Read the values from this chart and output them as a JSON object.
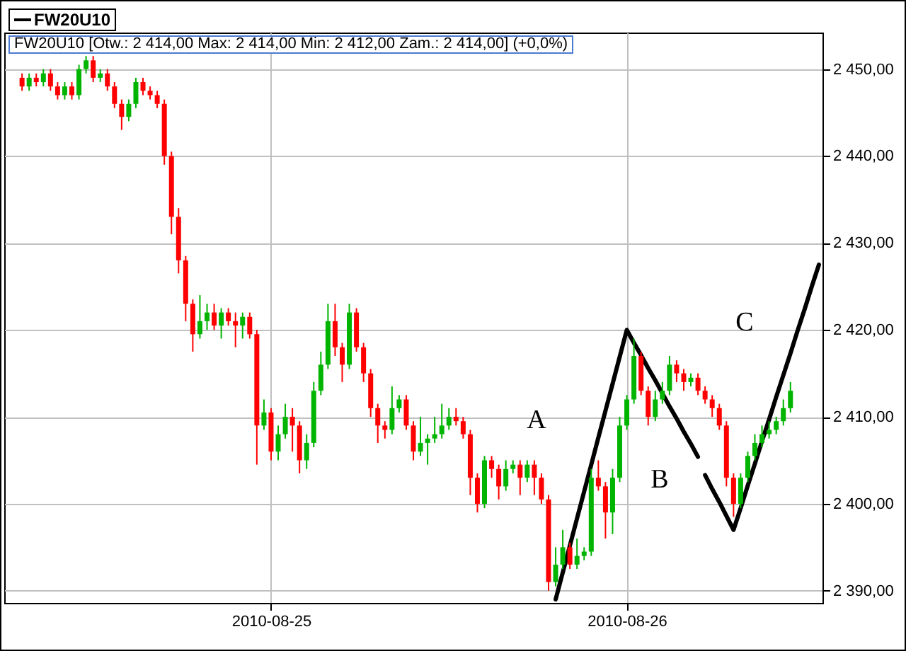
{
  "chart_data": {
    "type": "candlestick",
    "subtitle": "FW20U10 [Otw.: 2 414,00  Max: 2 414,00  Min: 2 412,00  Zam.: 2 414,00] (+0,0%)",
    "annotations": [
      "A",
      "B",
      "C"
    ],
    "categories": [
      null,
      null,
      null,
      null,
      null,
      null,
      null,
      null,
      null,
      null,
      null,
      null,
      null,
      null,
      null,
      null,
      null,
      null,
      null,
      null,
      null,
      null,
      null,
      null,
      null,
      null,
      null,
      null,
      null,
      null,
      null,
      null,
      null,
      null,
      null,
      null,
      null,
      "2010-08-25",
      null,
      null,
      null,
      null,
      null,
      null,
      null,
      null,
      null,
      null,
      null,
      null,
      null,
      null,
      null,
      null,
      null,
      null,
      null,
      null,
      null,
      null,
      null,
      null,
      null,
      null,
      null,
      null,
      null,
      null,
      null,
      null,
      null,
      null,
      null,
      null,
      null,
      null,
      null,
      null,
      null,
      null,
      null,
      null,
      null,
      null,
      null,
      null,
      null,
      "2010-08-26",
      null,
      null,
      null,
      null,
      null,
      null,
      null,
      null,
      null,
      null,
      null,
      null,
      null,
      null,
      null,
      null,
      null,
      null,
      null,
      null,
      null,
      null,
      null,
      null,
      null,
      null,
      null
    ],
    "ylim": [
      2388.6,
      2454.2
    ],
    "yticks": [
      {
        "value": 2390,
        "label": "2 390,00"
      },
      {
        "value": 2400,
        "label": "2 400,00"
      },
      {
        "value": 2410,
        "label": "2 410,00"
      },
      {
        "value": 2420,
        "label": "2 420,00"
      },
      {
        "value": 2430,
        "label": "2 430,00"
      },
      {
        "value": 2440,
        "label": "2 440,00"
      },
      {
        "value": 2450,
        "label": "2 450,00"
      }
    ],
    "grid": true,
    "legend": "top left",
    "series": [
      {
        "name": "FW20U10",
        "type": "candlestick",
        "ohlc": [
          null,
          null,
          [
            2449,
            2449.5,
            2447.5,
            2448
          ],
          [
            2448,
            2449.5,
            2447.5,
            2449
          ],
          [
            2449,
            2449.5,
            2448,
            2448.5
          ],
          [
            2448.5,
            2450,
            2448,
            2449.5
          ],
          [
            2449.5,
            2450,
            2447.5,
            2448
          ],
          [
            2448,
            2448.5,
            2446.5,
            2447
          ],
          [
            2447,
            2448.5,
            2446.5,
            2448
          ],
          [
            2448,
            2448.5,
            2446.5,
            2447
          ],
          [
            2447,
            2450.5,
            2446.5,
            2450
          ],
          [
            2450,
            2451.5,
            2449.5,
            2451
          ],
          [
            2451,
            2451.5,
            2448.5,
            2449
          ],
          [
            2449,
            2450,
            2448.5,
            2449.5
          ],
          [
            2449.5,
            2450,
            2447.5,
            2448
          ],
          [
            2448,
            2448.5,
            2445.5,
            2446
          ],
          [
            2446,
            2446.5,
            2443,
            2444.5
          ],
          [
            2444.5,
            2446.5,
            2444,
            2446
          ],
          [
            2446,
            2449,
            2445.5,
            2448.5
          ],
          [
            2448.5,
            2449,
            2447,
            2447.5
          ],
          [
            2447.5,
            2448,
            2446.5,
            2447
          ],
          [
            2447,
            2447.5,
            2445.5,
            2446
          ],
          [
            2446,
            2446.5,
            2439,
            2440
          ],
          [
            2440,
            2440.5,
            2431,
            2433
          ],
          [
            2433,
            2434,
            2426.5,
            2428
          ],
          [
            2428,
            2428.5,
            2421,
            2423
          ],
          [
            2423,
            2423.5,
            2417.5,
            2419.5
          ],
          [
            2419.5,
            2424,
            2419,
            2421
          ],
          [
            2421,
            2423,
            2420,
            2422
          ],
          [
            2422,
            2423,
            2420,
            2420.5
          ],
          [
            2420.5,
            2422.5,
            2419,
            2422
          ],
          [
            2422,
            2422.5,
            2420.5,
            2421
          ],
          [
            2421,
            2422,
            2418,
            2420.5
          ],
          [
            2420.5,
            2422,
            2419,
            2421.5
          ],
          [
            2421.5,
            2422,
            2419,
            2419.5
          ],
          [
            2419.5,
            2420,
            2404.5,
            2409
          ],
          [
            2409,
            2412,
            2408.5,
            2410.5
          ],
          [
            2410.5,
            2411,
            2405,
            2406
          ],
          [
            2406,
            2409,
            2405,
            2408
          ],
          [
            2408,
            2411.5,
            2407.5,
            2410
          ],
          [
            2410,
            2411,
            2406,
            2409
          ],
          [
            2409,
            2409.5,
            2403.5,
            2405
          ],
          [
            2405,
            2408,
            2404,
            2407
          ],
          [
            2407,
            2414,
            2406.5,
            2413
          ],
          [
            2413,
            2417.5,
            2412.5,
            2416
          ],
          [
            2416,
            2423,
            2415.5,
            2421
          ],
          [
            2421,
            2423,
            2417,
            2418
          ],
          [
            2418,
            2418.5,
            2414,
            2416
          ],
          [
            2416,
            2423,
            2415.5,
            2422
          ],
          [
            2422,
            2422.5,
            2417.5,
            2418
          ],
          [
            2418,
            2418.5,
            2414,
            2415
          ],
          [
            2415,
            2415.5,
            2410,
            2411
          ],
          [
            2411,
            2411.5,
            2407,
            2409
          ],
          [
            2409,
            2409.5,
            2407.5,
            2408.5
          ],
          [
            2408.5,
            2413.5,
            2408,
            2411
          ],
          [
            2411,
            2412.5,
            2410.5,
            2412
          ],
          [
            2412,
            2412.5,
            2408.5,
            2409
          ],
          [
            2409,
            2409.5,
            2405,
            2406
          ],
          [
            2406,
            2410,
            2405.5,
            2407
          ],
          [
            2407,
            2408,
            2404.5,
            2407.5
          ],
          [
            2407.5,
            2410,
            2407,
            2408
          ],
          [
            2408,
            2411.5,
            2407.5,
            2409
          ],
          [
            2409,
            2411,
            2408.5,
            2410
          ],
          [
            2410,
            2411,
            2409,
            2409.5
          ],
          [
            2409.5,
            2410,
            2407.5,
            2408
          ],
          [
            2408,
            2408.5,
            2401,
            2403
          ],
          [
            2403,
            2403.5,
            2399,
            2400
          ],
          [
            2400,
            2405.5,
            2399.5,
            2405
          ],
          [
            2405,
            2405.5,
            2403,
            2404
          ],
          [
            2404,
            2404.5,
            2400.5,
            2402
          ],
          [
            2402,
            2405,
            2401.5,
            2404
          ],
          [
            2404,
            2405,
            2403.5,
            2404.5
          ],
          [
            2404.5,
            2405,
            2401,
            2403
          ],
          [
            2403,
            2405,
            2402.5,
            2404.5
          ],
          [
            2404.5,
            2405,
            2401,
            2403
          ],
          [
            2403,
            2403.5,
            2400,
            2400.5
          ],
          [
            2400.5,
            2401,
            2390,
            2391
          ],
          [
            2391,
            2395,
            2390.5,
            2393
          ],
          [
            2393,
            2397,
            2392.5,
            2395
          ],
          [
            2395,
            2395.5,
            2392.5,
            2393
          ],
          [
            2393,
            2396,
            2392.5,
            2394
          ],
          [
            2394,
            2395,
            2393.5,
            2394.5
          ],
          [
            2394.5,
            2404,
            2394,
            2403
          ],
          [
            2403,
            2405,
            2401.5,
            2402
          ],
          [
            2402,
            2402.5,
            2396,
            2399
          ],
          [
            2399,
            2404,
            2396.5,
            2403
          ],
          [
            2403,
            2410,
            2402.5,
            2409
          ],
          [
            2409,
            2412.5,
            2408.5,
            2412
          ],
          [
            2412,
            2419,
            2411.5,
            2417
          ],
          [
            2417,
            2417.5,
            2412.5,
            2413
          ],
          [
            2413,
            2413.5,
            2409,
            2410
          ],
          [
            2410,
            2413,
            2409.5,
            2412
          ],
          [
            2412,
            2414,
            2411.5,
            2413
          ],
          [
            2413,
            2417,
            2412.5,
            2416
          ],
          [
            2416,
            2416.5,
            2414,
            2415
          ],
          [
            2415,
            2415.5,
            2413,
            2414
          ],
          [
            2414,
            2415,
            2413.5,
            2414.5
          ],
          [
            2414.5,
            2415,
            2412.5,
            2413
          ],
          [
            2413,
            2413.5,
            2411.5,
            2412
          ],
          [
            2412,
            2412.5,
            2410,
            2411
          ],
          [
            2411,
            2411.5,
            2408.5,
            2409
          ],
          [
            2409,
            2409.5,
            2402,
            2403
          ],
          [
            2403,
            2403.5,
            2398.5,
            2400
          ],
          [
            2400,
            2403.5,
            2399.5,
            2403
          ],
          [
            2403,
            2406,
            2402.5,
            2405.5
          ],
          [
            2405.5,
            2408,
            2405,
            2407
          ],
          [
            2407,
            2409,
            2406.5,
            2408
          ],
          [
            2408,
            2409.5,
            2407.5,
            2408.5
          ],
          [
            2408.5,
            2410,
            2408,
            2409.5
          ],
          [
            2409.5,
            2412,
            2409,
            2411
          ],
          [
            2411,
            2414,
            2410.5,
            2413
          ],
          null,
          null,
          null,
          null
        ],
        "colors": [
          null,
          null,
          "#ff0000",
          "#00b400",
          "#ff0000",
          "#00b400",
          "#ff0000",
          "#ff0000",
          "#00b400",
          "#ff0000",
          "#00b400",
          "#00b400",
          "#ff0000",
          "#00b400",
          "#ff0000",
          "#ff0000",
          "#ff0000",
          "#00b400",
          "#00b400",
          "#ff0000",
          "#ff0000",
          "#ff0000",
          "#ff0000",
          "#ff0000",
          "#ff0000",
          "#ff0000",
          "#ff0000",
          "#00b400",
          "#00b400",
          "#ff0000",
          "#00b400",
          "#ff0000",
          "#ff0000",
          "#00b400",
          "#ff0000",
          "#ff0000",
          "#00b400",
          "#ff0000",
          "#00b400",
          "#00b400",
          "#ff0000",
          "#ff0000",
          "#00b400",
          "#00b400",
          "#00b400",
          "#00b400",
          "#ff0000",
          "#ff0000",
          "#00b400",
          "#ff0000",
          "#ff0000",
          "#ff0000",
          "#ff0000",
          "#ff0000",
          "#00b400",
          "#00b400",
          "#ff0000",
          "#ff0000",
          "#00b400",
          "#00b400",
          "#00b400",
          "#00b400",
          "#00b400",
          "#ff0000",
          "#ff0000",
          "#ff0000",
          "#ff0000",
          "#00b400",
          "#ff0000",
          "#ff0000",
          "#00b400",
          "#00b400",
          "#ff0000",
          "#00b400",
          "#ff0000",
          "#ff0000",
          "#ff0000",
          "#00b400",
          "#00b400",
          "#ff0000",
          "#00b400",
          "#00b400",
          "#00b400",
          "#ff0000",
          "#ff0000",
          "#00b400",
          "#00b400",
          "#00b400",
          "#00b400",
          "#ff0000",
          "#ff0000",
          "#00b400",
          "#00b400",
          "#00b400",
          "#ff0000",
          "#ff0000",
          "#00b400",
          "#ff0000",
          "#ff0000",
          "#ff0000",
          "#ff0000",
          "#ff0000",
          "#ff0000",
          "#00b400",
          "#00b400",
          "#00b400",
          "#00b400",
          "#00b400",
          "#00b400",
          "#00b400",
          "#00b400",
          null,
          null,
          null,
          null
        ]
      },
      {
        "type": "line",
        "color": "#000000",
        "values": [
          null,
          null,
          null,
          null,
          null,
          null,
          null,
          null,
          null,
          null,
          null,
          null,
          null,
          null,
          null,
          null,
          null,
          null,
          null,
          null,
          null,
          null,
          null,
          null,
          null,
          null,
          null,
          null,
          null,
          null,
          null,
          null,
          null,
          null,
          null,
          null,
          null,
          null,
          null,
          null,
          null,
          null,
          null,
          null,
          null,
          null,
          null,
          null,
          null,
          null,
          null,
          null,
          null,
          null,
          null,
          null,
          null,
          null,
          null,
          null,
          null,
          null,
          null,
          null,
          null,
          null,
          null,
          null,
          null,
          null,
          null,
          null,
          null,
          null,
          null,
          null,
          null,
          2389,
          2392.1,
          2395.2,
          2398.3,
          2401.4,
          2404.5,
          2407.6,
          2410.7,
          2413.8,
          2416.9,
          2420,
          2418.5,
          2417.1,
          2415.6,
          2414.2,
          2412.7,
          2411.2,
          2409.8,
          2408.3,
          2406.9,
          2405.4,
          null,
          null,
          null,
          null,
          null,
          null,
          null,
          null,
          null,
          null,
          null,
          null,
          null,
          null,
          null,
          null,
          null
        ]
      },
      {
        "type": "line",
        "color": "#000000",
        "values": [
          null,
          null,
          null,
          null,
          null,
          null,
          null,
          null,
          null,
          null,
          null,
          null,
          null,
          null,
          null,
          null,
          null,
          null,
          null,
          null,
          null,
          null,
          null,
          null,
          null,
          null,
          null,
          null,
          null,
          null,
          null,
          null,
          null,
          null,
          null,
          null,
          null,
          null,
          null,
          null,
          null,
          null,
          null,
          null,
          null,
          null,
          null,
          null,
          null,
          null,
          null,
          null,
          null,
          null,
          null,
          null,
          null,
          null,
          null,
          null,
          null,
          null,
          null,
          null,
          null,
          null,
          null,
          null,
          null,
          null,
          null,
          null,
          null,
          null,
          null,
          null,
          null,
          null,
          null,
          null,
          null,
          null,
          null,
          null,
          null,
          null,
          null,
          null,
          null,
          null,
          null,
          null,
          null,
          null,
          null,
          null,
          null,
          null,
          2403.3,
          2401.7,
          2400.2,
          2398.6,
          2397,
          2399.5,
          2402.1,
          2404.6,
          2407.2,
          2409.7,
          2412.3,
          2414.8,
          2417.3,
          2419.9,
          2422.4,
          2425,
          2427.5
        ]
      }
    ]
  }
}
